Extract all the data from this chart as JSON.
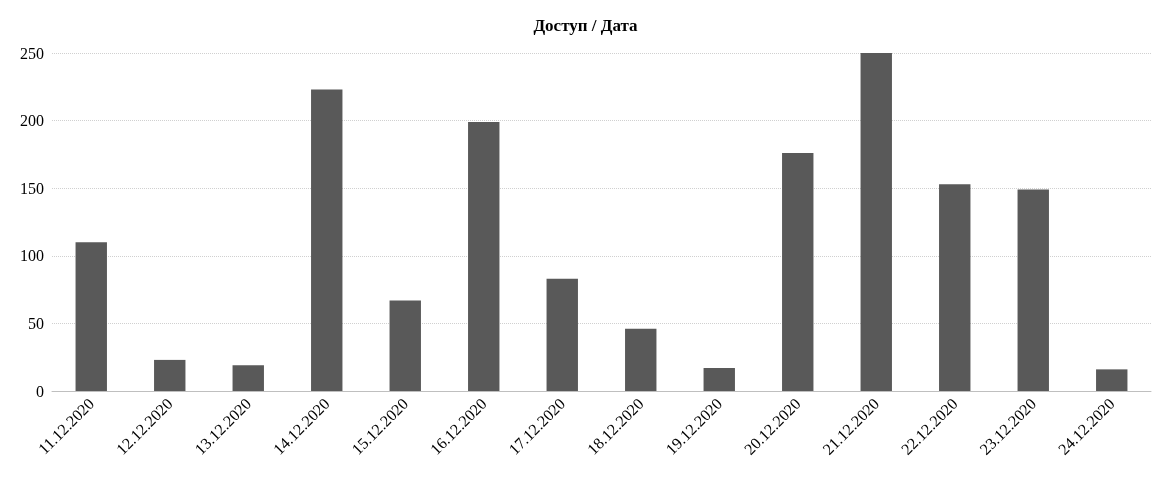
{
  "chart_data": {
    "type": "bar",
    "title": "Доступ / Дата",
    "categories": [
      "11.12.2020",
      "12.12.2020",
      "13.12.2020",
      "14.12.2020",
      "15.12.2020",
      "16.12.2020",
      "17.12.2020",
      "18.12.2020",
      "19.12.2020",
      "20.12.2020",
      "21.12.2020",
      "22.12.2020",
      "23.12.2020",
      "24.12.2020"
    ],
    "values": [
      110,
      23,
      19,
      223,
      67,
      199,
      83,
      46,
      17,
      176,
      250,
      153,
      149,
      16
    ],
    "color": "#595959",
    "ylim": [
      0,
      250
    ],
    "yticks": [
      0,
      50,
      100,
      150,
      200,
      250
    ],
    "grid": "y"
  }
}
